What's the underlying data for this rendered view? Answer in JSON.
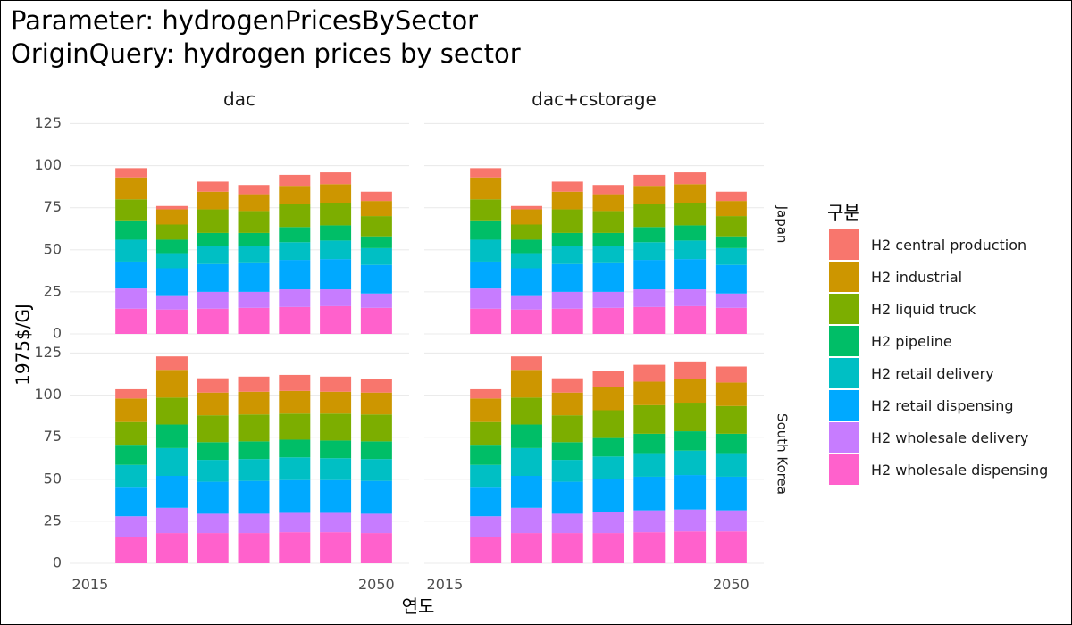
{
  "header": {
    "title_line1": "Parameter: hydrogenPricesBySector",
    "title_line2": "OriginQuery: hydrogen prices by sector"
  },
  "chart_data": {
    "type": "bar",
    "stacked": true,
    "faceted": true,
    "x": [
      2020,
      2025,
      2030,
      2035,
      2040,
      2045,
      2050
    ],
    "xlabel": "연도",
    "ylabel": "1975$/GJ",
    "x_ticks": [
      2015,
      2050
    ],
    "x_tick_labels": [
      "2015",
      "2050"
    ],
    "xlim": [
      2012.5,
      2054
    ],
    "ylim": [
      0,
      130
    ],
    "y_ticks": [
      0,
      25,
      50,
      75,
      100,
      125
    ],
    "y_tick_labels": [
      "0",
      "25",
      "50",
      "75",
      "100",
      "125"
    ],
    "grid": true,
    "legend": {
      "title": "구분",
      "position": "right",
      "entries": [
        "H2 central production",
        "H2 industrial",
        "H2 liquid truck",
        "H2 pipeline",
        "H2 retail delivery",
        "H2 retail dispensing",
        "H2 wholesale delivery",
        "H2 wholesale dispensing"
      ]
    },
    "series_colors": {
      "H2 central production": "#F8766D",
      "H2 industrial": "#CD9600",
      "H2 liquid truck": "#7CAE00",
      "H2 pipeline": "#00BE67",
      "H2 retail delivery": "#00BFC4",
      "H2 retail dispensing": "#00A9FF",
      "H2 wholesale delivery": "#C77CFF",
      "H2 wholesale dispensing": "#FF61CC"
    },
    "stack_order": [
      "H2 wholesale dispensing",
      "H2 wholesale delivery",
      "H2 retail dispensing",
      "H2 retail delivery",
      "H2 pipeline",
      "H2 liquid truck",
      "H2 industrial",
      "H2 central production"
    ],
    "column_strips": [
      "dac",
      "dac+cstorage"
    ],
    "row_strips": [
      "Japan",
      "South Korea"
    ],
    "panels": [
      {
        "scenario": "dac",
        "region": "Japan",
        "series": [
          {
            "name": "H2 wholesale dispensing",
            "values": [
              15,
              14.5,
              15,
              15.5,
              16,
              16.5,
              15.5
            ]
          },
          {
            "name": "H2 wholesale delivery",
            "values": [
              12,
              8.5,
              10,
              9.5,
              10.5,
              10,
              8.5
            ]
          },
          {
            "name": "H2 retail dispensing",
            "values": [
              16,
              16,
              16.5,
              17,
              17.5,
              18,
              17
            ]
          },
          {
            "name": "H2 retail delivery",
            "values": [
              13,
              9,
              10.5,
              10,
              10.5,
              11,
              10
            ]
          },
          {
            "name": "H2 pipeline",
            "values": [
              11.5,
              8,
              8,
              8,
              9,
              9,
              7
            ]
          },
          {
            "name": "H2 liquid truck",
            "values": [
              12.5,
              9,
              14,
              13,
              13.5,
              13.5,
              12
            ]
          },
          {
            "name": "H2 industrial",
            "values": [
              13,
              9,
              10.5,
              10,
              11,
              11,
              9
            ]
          },
          {
            "name": "H2 central production",
            "values": [
              5.5,
              2,
              6,
              5.5,
              6.5,
              7,
              5.5
            ]
          }
        ]
      },
      {
        "scenario": "dac+cstorage",
        "region": "Japan",
        "series": [
          {
            "name": "H2 wholesale dispensing",
            "values": [
              15,
              14.5,
              15,
              15.5,
              16,
              16.5,
              15.5
            ]
          },
          {
            "name": "H2 wholesale delivery",
            "values": [
              12,
              8.5,
              10,
              9.5,
              10.5,
              10,
              8.5
            ]
          },
          {
            "name": "H2 retail dispensing",
            "values": [
              16,
              16,
              16.5,
              17,
              17.5,
              18,
              17
            ]
          },
          {
            "name": "H2 retail delivery",
            "values": [
              13,
              9,
              10.5,
              10,
              10.5,
              11,
              10
            ]
          },
          {
            "name": "H2 pipeline",
            "values": [
              11.5,
              8,
              8,
              8,
              9,
              9,
              7
            ]
          },
          {
            "name": "H2 liquid truck",
            "values": [
              12.5,
              9,
              14,
              13,
              13.5,
              13.5,
              12
            ]
          },
          {
            "name": "H2 industrial",
            "values": [
              13,
              9,
              10.5,
              10,
              11,
              11,
              9
            ]
          },
          {
            "name": "H2 central production",
            "values": [
              5.5,
              2,
              6,
              5.5,
              6.5,
              7,
              5.5
            ]
          }
        ]
      },
      {
        "scenario": "dac",
        "region": "South Korea",
        "series": [
          {
            "name": "H2 wholesale dispensing",
            "values": [
              15.5,
              18,
              18,
              18,
              18.5,
              18.5,
              18
            ]
          },
          {
            "name": "H2 wholesale delivery",
            "values": [
              12.5,
              15,
              11.5,
              11.5,
              11.5,
              11.5,
              11.5
            ]
          },
          {
            "name": "H2 retail dispensing",
            "values": [
              17,
              19,
              19,
              19.5,
              19.5,
              19.5,
              19.5
            ]
          },
          {
            "name": "H2 retail delivery",
            "values": [
              13.5,
              16.5,
              13,
              13,
              13.5,
              13,
              13
            ]
          },
          {
            "name": "H2 pipeline",
            "values": [
              12,
              14,
              10.5,
              10.5,
              10.5,
              10.5,
              10.5
            ]
          },
          {
            "name": "H2 liquid truck",
            "values": [
              13.5,
              16,
              16,
              16,
              15.5,
              16,
              16
            ]
          },
          {
            "name": "H2 industrial",
            "values": [
              14,
              16.5,
              13.5,
              13.5,
              13.5,
              13,
              13
            ]
          },
          {
            "name": "H2 central production",
            "values": [
              5.5,
              8,
              8.5,
              9,
              9.5,
              9,
              8
            ]
          }
        ]
      },
      {
        "scenario": "dac+cstorage",
        "region": "South Korea",
        "series": [
          {
            "name": "H2 wholesale dispensing",
            "values": [
              15.5,
              18,
              18,
              18,
              18.5,
              19,
              19
            ]
          },
          {
            "name": "H2 wholesale delivery",
            "values": [
              12.5,
              15,
              11.5,
              12.5,
              13,
              13,
              12.5
            ]
          },
          {
            "name": "H2 retail dispensing",
            "values": [
              17,
              19,
              19,
              19.5,
              20,
              20.5,
              20
            ]
          },
          {
            "name": "H2 retail delivery",
            "values": [
              13.5,
              16.5,
              13,
              13.5,
              14,
              14.5,
              14
            ]
          },
          {
            "name": "H2 pipeline",
            "values": [
              12,
              14,
              10.5,
              11,
              11.5,
              11.5,
              11.5
            ]
          },
          {
            "name": "H2 liquid truck",
            "values": [
              13.5,
              16,
              16,
              16.5,
              17,
              17,
              16.5
            ]
          },
          {
            "name": "H2 industrial",
            "values": [
              14,
              16.5,
              13.5,
              14,
              14,
              14,
              14
            ]
          },
          {
            "name": "H2 central production",
            "values": [
              5.5,
              8,
              8.5,
              9.5,
              10,
              10.5,
              9.5
            ]
          }
        ]
      }
    ]
  }
}
